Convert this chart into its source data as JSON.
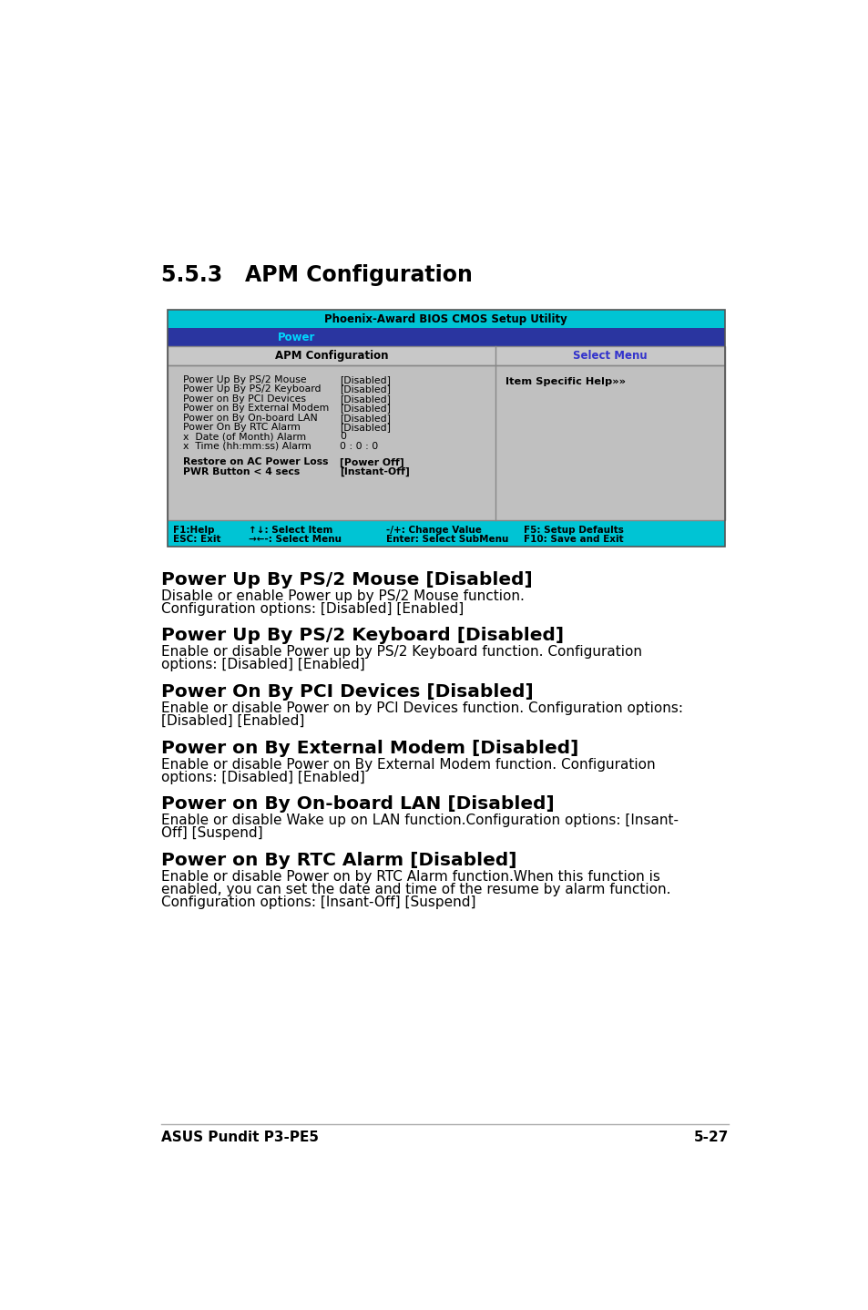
{
  "title": "5.5.3   APM Configuration",
  "title_fontsize": 17,
  "page_bg": "#ffffff",
  "bios_header_text": "Phoenix-Award BIOS CMOS Setup Utility",
  "bios_header_bg": "#00c4d4",
  "bios_header_fg": "#000000",
  "menu_bar_text": "Power",
  "menu_bar_bg": "#2a35a0",
  "menu_bar_fg": "#00d8ff",
  "col1_header": "APM Configuration",
  "col2_header": "Select Menu",
  "col_header_bg": "#c8c8c8",
  "col_header_border": "#888888",
  "col_header_fg_left": "#000000",
  "col_header_fg_right": "#3333cc",
  "table_bg": "#c0c0c0",
  "item_help_text": "Item Specific Help»»",
  "menu_items": [
    [
      "Power Up By PS/2 Mouse",
      "[Disabled]",
      false
    ],
    [
      "Power Up By PS/2 Keyboard",
      "[Disabled]",
      false
    ],
    [
      "Power on By PCI Devices",
      "[Disabled]",
      false
    ],
    [
      "Power on By External Modem",
      "[Disabled]",
      false
    ],
    [
      "Power on By On-board LAN",
      "[Disabled]",
      false
    ],
    [
      "Power On By RTC Alarm",
      "[Disabled]",
      false
    ],
    [
      "x  Date (of Month) Alarm",
      "0",
      false
    ],
    [
      "x  Time (hh:mm:ss) Alarm",
      "0 : 0 : 0",
      false
    ],
    [
      "Restore on AC Power Loss",
      "[Power Off]",
      true
    ],
    [
      "PWR Button < 4 secs",
      "[Instant-Off]",
      true
    ]
  ],
  "bottom_bar_bg": "#00c4d4",
  "bottom_row1": [
    "F1:Help",
    "↑↓: Select Item",
    "-/+: Change Value",
    "F5: Setup Defaults"
  ],
  "bottom_row2": [
    "ESC: Exit",
    "→←-: Select Menu",
    "Enter: Select SubMenu",
    "F10: Save and Exit"
  ],
  "sections": [
    {
      "heading": "Power Up By PS/2 Mouse [Disabled]",
      "body": "Disable or enable Power up by PS/2 Mouse function.\nConfiguration options: [Disabled] [Enabled]",
      "body_lines": 2
    },
    {
      "heading": "Power Up By PS/2 Keyboard [Disabled]",
      "body": "Enable or disable Power up by PS/2 Keyboard function. Configuration\noptions: [Disabled] [Enabled]",
      "body_lines": 2
    },
    {
      "heading": "Power On By PCI Devices [Disabled]",
      "body": "Enable or disable Power on by PCI Devices function. Configuration options:\n[Disabled] [Enabled]",
      "body_lines": 2
    },
    {
      "heading": "Power on By External Modem [Disabled]",
      "body": "Enable or disable Power on By External Modem function. Configuration\noptions: [Disabled] [Enabled]",
      "body_lines": 2
    },
    {
      "heading": "Power on By On-board LAN [Disabled]",
      "body": "Enable or disable Wake up on LAN function.Configuration options: [Insant-\nOff] [Suspend]",
      "body_lines": 2
    },
    {
      "heading": "Power on By RTC Alarm [Disabled]",
      "body": "Enable or disable Power on by RTC Alarm function.When this function is\nenabled, you can set the date and time of the resume by alarm function.\nConfiguration options: [Insant-Off] [Suspend]",
      "body_lines": 3
    }
  ],
  "footer_left": "ASUS Pundit P3-PE5",
  "footer_right": "5-27",
  "footer_fontsize": 11
}
